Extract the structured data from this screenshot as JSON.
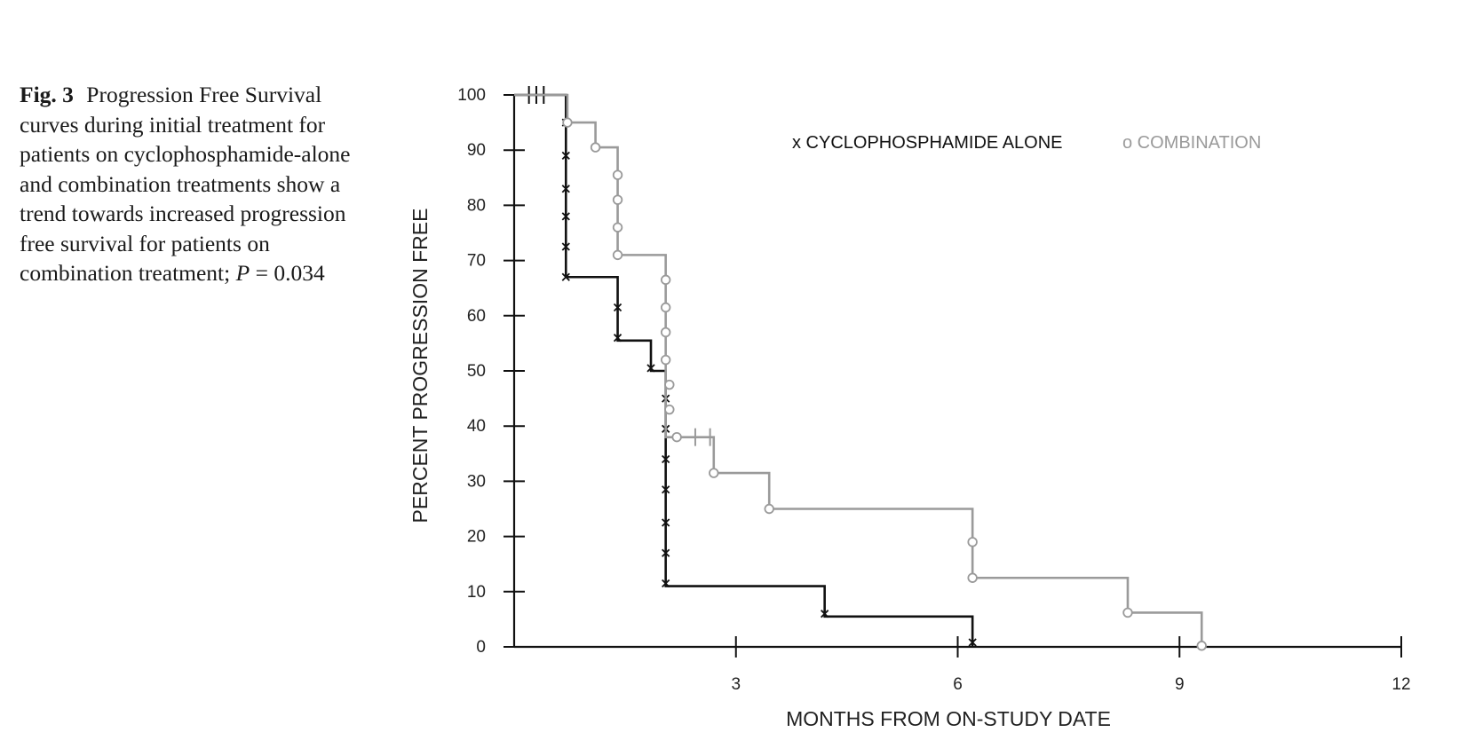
{
  "caption": {
    "label": "Fig. 3",
    "text": "Progression Free Survival curves during initial treatment for patients on cyclophosphamide-alone and combination treatments show a trend towards increased progression free survival for patients on combination treatment;",
    "p_var": "P",
    "p_rest": " = 0.034"
  },
  "chart_data": {
    "type": "line",
    "subtype": "kaplan-meier step",
    "xlabel": "MONTHS FROM ON-STUDY DATE",
    "ylabel": "PERCENT PROGRESSION FREE",
    "xlim": [
      0,
      12
    ],
    "ylim": [
      0,
      100
    ],
    "x_ticks": [
      3,
      6,
      9,
      12
    ],
    "y_ticks": [
      0,
      10,
      20,
      30,
      40,
      50,
      60,
      70,
      80,
      90,
      100
    ],
    "grid": false,
    "legend_position": "top-right",
    "series": [
      {
        "name": "CYCLOPHOSPHAMIDE ALONE",
        "legend_label": "x CYCLOPHOSPHAMIDE ALONE",
        "marker": "x",
        "color": "#111111",
        "steps": [
          [
            0,
            100
          ],
          [
            0.7,
            67
          ],
          [
            1.4,
            55.5
          ],
          [
            1.85,
            50
          ],
          [
            2.05,
            11
          ],
          [
            4.2,
            5.5
          ],
          [
            6.2,
            0
          ]
        ],
        "event_marks": [
          [
            0.7,
            95
          ],
          [
            0.7,
            89
          ],
          [
            0.7,
            83
          ],
          [
            0.7,
            78
          ],
          [
            0.7,
            72.5
          ],
          [
            0.7,
            67
          ],
          [
            1.4,
            61.5
          ],
          [
            1.4,
            56
          ],
          [
            1.85,
            50.5
          ],
          [
            2.05,
            45
          ],
          [
            2.05,
            39.5
          ],
          [
            2.05,
            34
          ],
          [
            2.05,
            28.5
          ],
          [
            2.05,
            22.5
          ],
          [
            2.05,
            17
          ],
          [
            2.05,
            11.5
          ],
          [
            4.2,
            6
          ],
          [
            6.2,
            0.8
          ]
        ],
        "censor_marks": [
          [
            0.2,
            100
          ],
          [
            0.3,
            100
          ],
          [
            0.4,
            100
          ]
        ]
      },
      {
        "name": "COMBINATION",
        "legend_label": "o COMBINATION",
        "marker": "o",
        "color": "#9a9a9a",
        "steps": [
          [
            0,
            100
          ],
          [
            0.72,
            95
          ],
          [
            1.1,
            90.5
          ],
          [
            1.4,
            71
          ],
          [
            2.05,
            38
          ],
          [
            2.7,
            31.5
          ],
          [
            3.45,
            25
          ],
          [
            6.2,
            12.5
          ],
          [
            8.3,
            6.2
          ],
          [
            9.3,
            0
          ]
        ],
        "event_marks": [
          [
            0.72,
            95
          ],
          [
            1.1,
            90.5
          ],
          [
            1.4,
            85.5
          ],
          [
            1.4,
            81
          ],
          [
            1.4,
            76
          ],
          [
            1.4,
            71
          ],
          [
            2.05,
            66.5
          ],
          [
            2.05,
            61.5
          ],
          [
            2.05,
            57
          ],
          [
            2.05,
            52
          ],
          [
            2.1,
            47.5
          ],
          [
            2.1,
            43
          ],
          [
            2.2,
            38
          ],
          [
            2.7,
            31.5
          ],
          [
            3.45,
            25
          ],
          [
            6.2,
            19
          ],
          [
            6.2,
            12.5
          ],
          [
            8.3,
            6.2
          ],
          [
            9.3,
            0.2
          ]
        ],
        "censor_marks": [
          [
            2.45,
            38
          ],
          [
            2.65,
            38
          ]
        ]
      }
    ]
  }
}
